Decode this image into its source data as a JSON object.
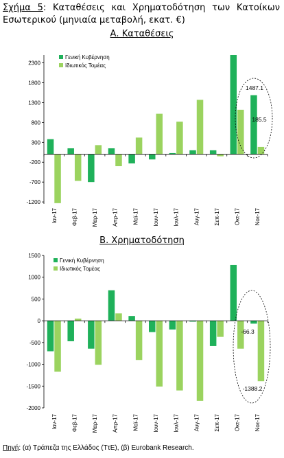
{
  "figure": {
    "label": "Σχήμα 5",
    "title": "Καταθέσεις και Χρηματοδότηση των Κατοίκων Εσωτερικού (μηνιαία μεταβολή, εκατ. €)"
  },
  "colors": {
    "gov": "#1fb15a",
    "priv": "#9bd35f",
    "axis": "#000000",
    "ellipse": "#000000"
  },
  "source": {
    "label": "Πηγή",
    "text": ": (α) Τράπεζα της Ελλάδος (ΤτΕ), (β) Eurobank Research."
  },
  "chart_data": [
    {
      "type": "bar",
      "title": "Α. Καταθέσεις",
      "categories": [
        "Ιαν-17",
        "Φεβ-17",
        "Μαρ-17",
        "Απρ-17",
        "Μαϊ-17",
        "Ιουν-17",
        "Ιουλ-17",
        "Αυγ-17",
        "Σεπ-17",
        "Οκτ-17",
        "Νοε-17"
      ],
      "series": [
        {
          "name": "Γενική Κυβέρνηση",
          "values": [
            380,
            150,
            -700,
            150,
            -230,
            -130,
            30,
            100,
            100,
            2500,
            1487.1
          ]
        },
        {
          "name": "Ιδιωτικός Τομέας",
          "values": [
            -1230,
            -670,
            230,
            -300,
            420,
            1020,
            820,
            1370,
            -50,
            1120,
            185.5
          ]
        }
      ],
      "ylim": [
        -1250,
        2500
      ],
      "yticks": [
        -1200,
        -700,
        -200,
        300,
        800,
        1300,
        1800,
        2300
      ],
      "annotations": [
        "1487.1",
        "185.5"
      ],
      "legend": "top-left",
      "grid": false
    },
    {
      "type": "bar",
      "title": "Β. Χρηματοδότηση",
      "categories": [
        "Ιαν-17",
        "Φεβ-17",
        "Μαρ-17",
        "Απρ-17",
        "Μαϊ-17",
        "Ιουν-17",
        "Ιουλ-17",
        "Αυγ-17",
        "Σεπ-17",
        "Οκτ-17",
        "Νοε-17"
      ],
      "series": [
        {
          "name": "Γενική Κυβέρνηση",
          "values": [
            -700,
            -470,
            -640,
            700,
            110,
            -260,
            -200,
            -20,
            -580,
            1280,
            -66.3
          ]
        },
        {
          "name": "Ιδιωτικός Τομέας",
          "values": [
            -1170,
            50,
            -1010,
            170,
            -900,
            -1510,
            -1600,
            -1840,
            -370,
            -640,
            -1388.2
          ]
        }
      ],
      "ylim": [
        -2000,
        1500
      ],
      "yticks": [
        -2000,
        -1500,
        -1000,
        -500,
        0,
        500,
        1000,
        1500
      ],
      "annotations": [
        "-66.3",
        "-1388.2"
      ],
      "legend": "top-left",
      "grid": false
    }
  ]
}
